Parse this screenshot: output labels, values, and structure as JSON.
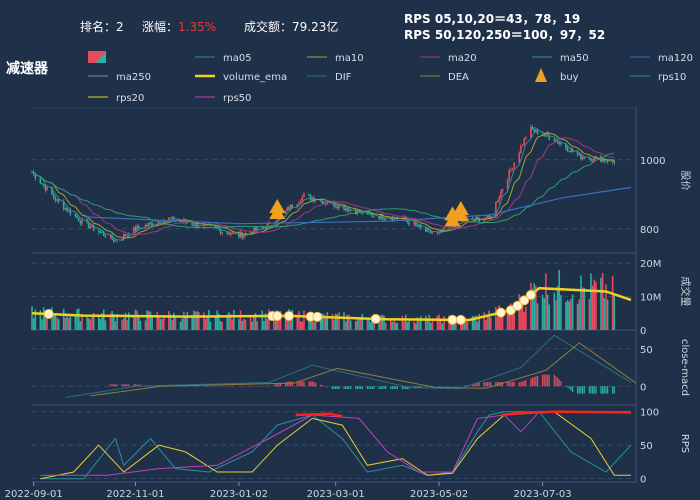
{
  "header": {
    "rank_label": "排名：",
    "rank_value": "2",
    "change_label": "涨幅：",
    "change_value": "1.35%",
    "turnover_label": "成交额：",
    "turnover_value": "79.23亿",
    "rps_line1": "RPS 05,10,20＝43，78，19",
    "rps_line2": "RPS 50,120,250＝100，97，52"
  },
  "title": "减速器",
  "legend": [
    {
      "label": "",
      "color": "#e84a5f",
      "kind": "candle"
    },
    {
      "label": "ma05",
      "color": "#2a8f8f",
      "kind": "line"
    },
    {
      "label": "ma10",
      "color": "#a8a030",
      "kind": "line"
    },
    {
      "label": "ma20",
      "color": "#a03a80",
      "kind": "line"
    },
    {
      "label": "ma50",
      "color": "#2aa070",
      "kind": "line"
    },
    {
      "label": "ma120",
      "color": "#3a70c0",
      "kind": "line"
    },
    {
      "label": "ma250",
      "color": "#9a7ab0",
      "kind": "line"
    },
    {
      "label": "volume_ema",
      "color": "#f0d020",
      "kind": "thick"
    },
    {
      "label": "DIF",
      "color": "#2a7080",
      "kind": "line"
    },
    {
      "label": "DEA",
      "color": "#8a8040",
      "kind": "line"
    },
    {
      "label": "buy",
      "color": "#f0a020",
      "kind": "triangle"
    },
    {
      "label": "rps10",
      "color": "#2a90a0",
      "kind": "line"
    },
    {
      "label": "rps20",
      "color": "#e8d030",
      "kind": "line"
    },
    {
      "label": "rps50",
      "color": "#c040c0",
      "kind": "line"
    }
  ],
  "chart_data": {
    "type": "candlestick",
    "x_ticks": [
      "2022-09-01",
      "2022-11-01",
      "2023-01-02",
      "2023-03-01",
      "2023-05-02",
      "2023-07-03"
    ],
    "panels": [
      {
        "name": "price",
        "ylabel": "股价",
        "yticks": [
          800,
          1000
        ],
        "ylim": [
          730,
          1150
        ],
        "close_series": [
          {
            "date": "2022-08-31",
            "close": 965
          },
          {
            "date": "2022-09-15",
            "close": 880
          },
          {
            "date": "2022-09-30",
            "close": 820
          },
          {
            "date": "2022-10-20",
            "close": 765
          },
          {
            "date": "2022-11-01",
            "close": 800
          },
          {
            "date": "2022-11-20",
            "close": 830
          },
          {
            "date": "2022-12-15",
            "close": 805
          },
          {
            "date": "2023-01-02",
            "close": 780
          },
          {
            "date": "2023-01-20",
            "close": 810
          },
          {
            "date": "2023-02-01",
            "close": 860
          },
          {
            "date": "2023-02-10",
            "close": 895
          },
          {
            "date": "2023-03-01",
            "close": 870
          },
          {
            "date": "2023-03-20",
            "close": 840
          },
          {
            "date": "2023-04-10",
            "close": 830
          },
          {
            "date": "2023-04-25",
            "close": 790
          },
          {
            "date": "2023-05-02",
            "close": 785
          },
          {
            "date": "2023-05-15",
            "close": 825
          },
          {
            "date": "2023-06-01",
            "close": 830
          },
          {
            "date": "2023-06-10",
            "close": 930
          },
          {
            "date": "2023-06-25",
            "close": 1090
          },
          {
            "date": "2023-07-10",
            "close": 1060
          },
          {
            "date": "2023-07-25",
            "close": 1010
          },
          {
            "date": "2023-08-10",
            "close": 1000
          },
          {
            "date": "2023-08-25",
            "close": 975
          }
        ],
        "ma120": [
          {
            "date": "2022-10-01",
            "close": 835
          },
          {
            "date": "2023-01-02",
            "close": 815
          },
          {
            "date": "2023-04-01",
            "close": 822
          },
          {
            "date": "2023-06-01",
            "close": 840
          },
          {
            "date": "2023-07-15",
            "close": 890
          },
          {
            "date": "2023-08-25",
            "close": 920
          }
        ],
        "buy_signals": [
          "2023-01-25",
          "2023-05-10",
          "2023-05-15"
        ]
      },
      {
        "name": "volume",
        "ylabel": "成交量",
        "yticks": [
          "0",
          "10M",
          "20M"
        ],
        "ylim": [
          0,
          23
        ],
        "volume_ema": [
          {
            "date": "2022-08-31",
            "value": 5.0
          },
          {
            "date": "2022-10-01",
            "value": 4.3
          },
          {
            "date": "2022-12-01",
            "value": 4.0
          },
          {
            "date": "2023-02-01",
            "value": 4.2
          },
          {
            "date": "2023-04-01",
            "value": 3.2
          },
          {
            "date": "2023-05-20",
            "value": 3.0
          },
          {
            "date": "2023-06-15",
            "value": 6.0
          },
          {
            "date": "2023-07-01",
            "value": 12.5
          },
          {
            "date": "2023-08-10",
            "value": 11.5
          },
          {
            "date": "2023-08-25",
            "value": 9.0
          }
        ]
      },
      {
        "name": "macd",
        "ylabel": "close-macd",
        "yticks": [
          0,
          50
        ],
        "ylim": [
          -25,
          75
        ],
        "dif": [
          {
            "date": "2022-09-20",
            "value": -15
          },
          {
            "date": "2022-11-01",
            "value": 0
          },
          {
            "date": "2023-01-20",
            "value": 5
          },
          {
            "date": "2023-02-15",
            "value": 28
          },
          {
            "date": "2023-04-15",
            "value": -2
          },
          {
            "date": "2023-05-15",
            "value": -3
          },
          {
            "date": "2023-06-20",
            "value": 25
          },
          {
            "date": "2023-07-10",
            "value": 68
          },
          {
            "date": "2023-08-25",
            "value": 5
          }
        ]
      },
      {
        "name": "rps",
        "ylabel": "RPS",
        "yticks": [
          0,
          50,
          100
        ],
        "ylim": [
          -5,
          110
        ]
      }
    ]
  }
}
